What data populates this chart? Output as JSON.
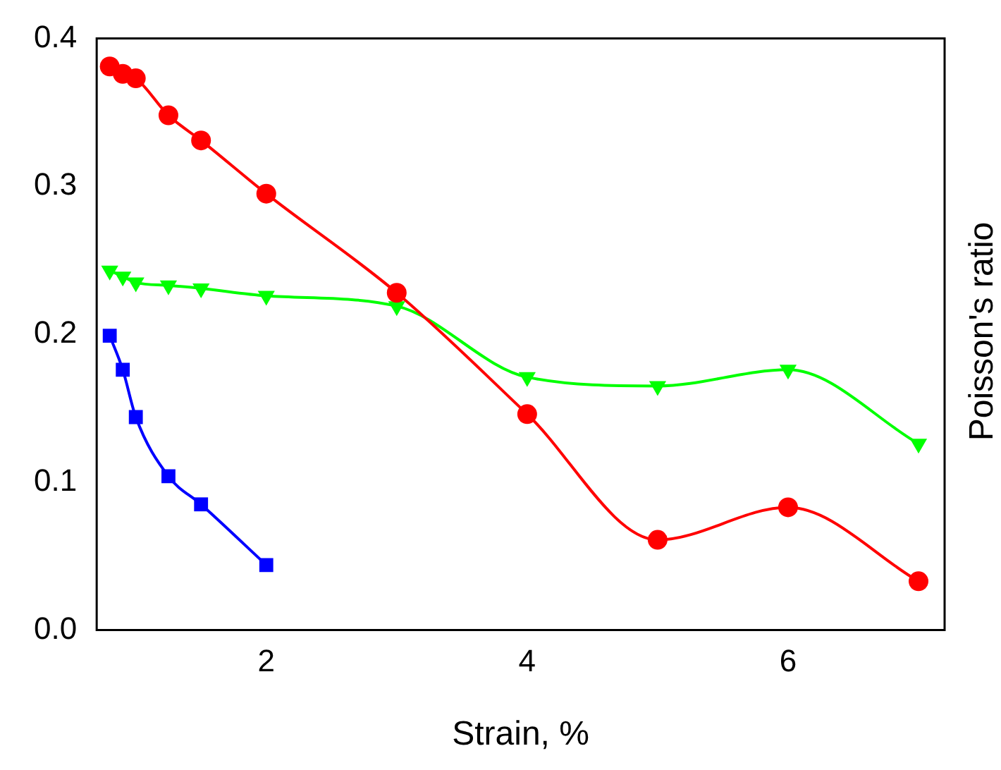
{
  "chart_data": {
    "type": "line",
    "xlabel": "Strain, %",
    "ylabel": "Poisson's ratio",
    "xlim": [
      0.7,
      7.2
    ],
    "xticks": [
      2,
      4,
      6
    ],
    "ylim": [
      0,
      0.4
    ],
    "yticks": [
      {
        "value": 0,
        "label": "0.0"
      },
      {
        "value": 0.1,
        "label": "0.1"
      },
      {
        "value": 0.2,
        "label": "0.2"
      },
      {
        "value": 0.3,
        "label": "0.3"
      },
      {
        "value": 0.4,
        "label": "0.4"
      }
    ],
    "grid": false,
    "legend": false,
    "series": [
      {
        "color": "#ff0000",
        "marker": "circle",
        "x": [
          0.8,
          0.9,
          1,
          1.25,
          1.5,
          2,
          3,
          4,
          5,
          6,
          7
        ],
        "values": [
          0.381,
          0.376,
          0.373,
          0.348,
          0.331,
          0.295,
          0.228,
          0.146,
          0.061,
          0.083,
          0.033
        ]
      },
      {
        "color": "#00ff00",
        "marker": "triangle",
        "x": [
          0.8,
          0.9,
          1,
          1.25,
          1.5,
          2,
          3,
          4,
          5,
          6,
          7
        ],
        "values": [
          0.243,
          0.239,
          0.235,
          0.233,
          0.231,
          0.226,
          0.219,
          0.171,
          0.165,
          0.176,
          0.126
        ]
      },
      {
        "color": "#0000ff",
        "marker": "square",
        "x": [
          0.8,
          0.9,
          1,
          1.25,
          1.5,
          2
        ],
        "values": [
          0.199,
          0.176,
          0.144,
          0.104,
          0.085,
          0.044
        ]
      }
    ]
  }
}
